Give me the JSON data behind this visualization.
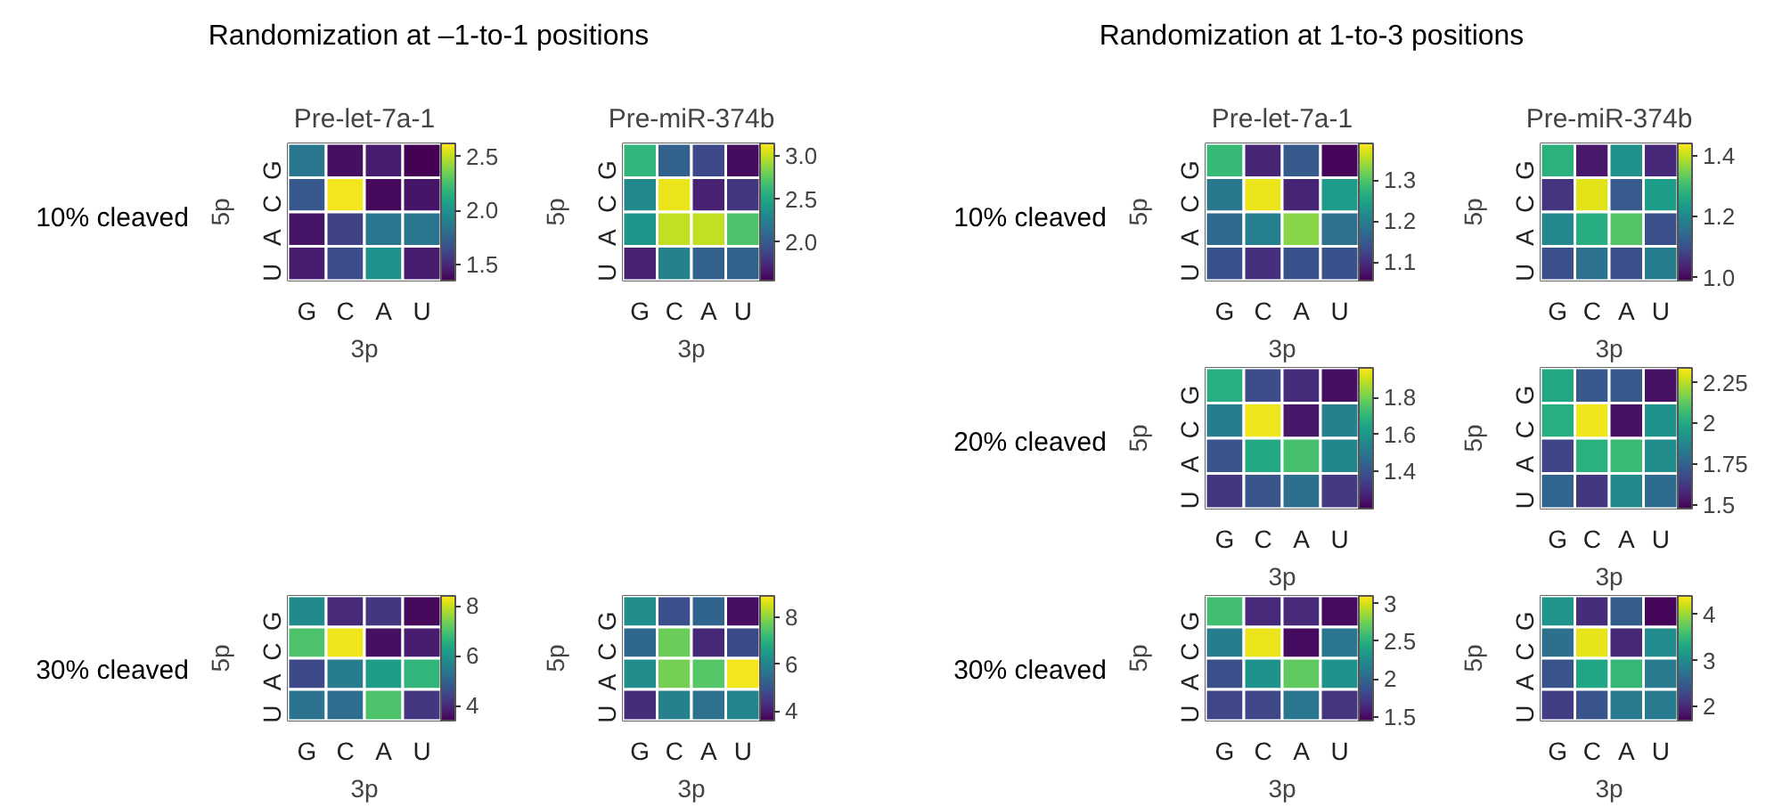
{
  "chart_data": [
    {
      "type": "heatmap",
      "title": "Pre-let-7a-1",
      "xlabel": "3p",
      "ylabel": "5p",
      "categories": [
        "G",
        "C",
        "A",
        "U"
      ],
      "y_categories": [
        "G",
        "C",
        "A",
        "U"
      ],
      "annotations": [
        "Randomization at –1-to-1 positions",
        "10% cleaved"
      ],
      "cells": [
        [
          1.85,
          1.4,
          1.45,
          1.33
        ],
        [
          1.7,
          2.6,
          1.38,
          1.42
        ],
        [
          1.42,
          1.6,
          1.85,
          1.85
        ],
        [
          1.45,
          1.65,
          2.0,
          1.45
        ]
      ],
      "clim": [
        1.35,
        2.62
      ],
      "cticks": [
        1.5,
        {
          "value": 2.0,
          "label": "2.0"
        },
        2.5
      ]
    },
    {
      "type": "heatmap",
      "title": "Pre-miR-374b",
      "xlabel": "3p",
      "ylabel": "5p",
      "categories": [
        "G",
        "C",
        "A",
        "U"
      ],
      "y_categories": [
        "G",
        "C",
        "A",
        "U"
      ],
      "cells": [
        [
          2.6,
          2.05,
          1.9,
          1.6
        ],
        [
          2.3,
          3.1,
          1.7,
          1.8
        ],
        [
          2.4,
          3.0,
          3.0,
          2.7
        ],
        [
          1.7,
          2.25,
          2.05,
          2.05
        ]
      ],
      "clim": [
        1.55,
        3.15
      ],
      "cticks": [
        {
          "value": 2.0,
          "label": "2.0"
        },
        2.5,
        {
          "value": 3.0,
          "label": "3.0"
        }
      ]
    },
    {
      "type": "heatmap",
      "xlabel": "3p",
      "ylabel": "5p",
      "categories": [
        "G",
        "C",
        "A",
        "U"
      ],
      "y_categories": [
        "G",
        "C",
        "A",
        "U"
      ],
      "annotations": [
        "30% cleaved"
      ],
      "cells": [
        [
          5.8,
          4.0,
          4.2,
          3.5
        ],
        [
          7.0,
          8.3,
          3.6,
          3.8
        ],
        [
          4.5,
          5.5,
          6.2,
          6.7
        ],
        [
          5.3,
          5.2,
          7.0,
          4.2
        ]
      ],
      "clim": [
        3.4,
        8.4
      ],
      "cticks": [
        4,
        6,
        8
      ]
    },
    {
      "type": "heatmap",
      "xlabel": "3p",
      "ylabel": "5p",
      "categories": [
        "G",
        "C",
        "A",
        "U"
      ],
      "y_categories": [
        "G",
        "C",
        "A",
        "U"
      ],
      "cells": [
        [
          6.2,
          4.9,
          5.3,
          3.8
        ],
        [
          5.4,
          7.7,
          4.2,
          4.8
        ],
        [
          6.2,
          7.8,
          7.5,
          8.8
        ],
        [
          4.3,
          5.9,
          5.6,
          6.0
        ]
      ],
      "clim": [
        3.6,
        8.9
      ],
      "cticks": [
        4,
        6,
        8
      ]
    },
    {
      "type": "heatmap",
      "title": "Pre-let-7a-1",
      "xlabel": "3p",
      "ylabel": "5p",
      "categories": [
        "G",
        "C",
        "A",
        "U"
      ],
      "y_categories": [
        "G",
        "C",
        "A",
        "U"
      ],
      "annotations": [
        "Randomization at 1-to-3 positions",
        "10% cleaved"
      ],
      "cells": [
        [
          1.28,
          1.09,
          1.15,
          1.06
        ],
        [
          1.19,
          1.38,
          1.09,
          1.24
        ],
        [
          1.17,
          1.2,
          1.33,
          1.18
        ],
        [
          1.14,
          1.1,
          1.14,
          1.14
        ]
      ],
      "clim": [
        1.055,
        1.39
      ],
      "cticks": [
        1.1,
        1.2,
        1.3
      ]
    },
    {
      "type": "heatmap",
      "title": "Pre-miR-374b",
      "xlabel": "3p",
      "ylabel": "5p",
      "categories": [
        "G",
        "C",
        "A",
        "U"
      ],
      "y_categories": [
        "G",
        "C",
        "A",
        "U"
      ],
      "cells": [
        [
          1.28,
          1.02,
          1.22,
          1.04
        ],
        [
          1.06,
          1.42,
          1.12,
          1.24
        ],
        [
          1.2,
          1.27,
          1.32,
          1.1
        ],
        [
          1.1,
          1.16,
          1.1,
          1.18
        ]
      ],
      "clim": [
        0.99,
        1.44
      ],
      "cticks": [
        {
          "value": 1.0,
          "label": "1.0"
        },
        1.2,
        1.4
      ]
    },
    {
      "type": "heatmap",
      "xlabel": "3p",
      "ylabel": "5p",
      "categories": [
        "G",
        "C",
        "A",
        "U"
      ],
      "y_categories": [
        "G",
        "C",
        "A",
        "U"
      ],
      "annotations": [
        "20% cleaved"
      ],
      "cells": [
        [
          1.68,
          1.38,
          1.3,
          1.23
        ],
        [
          1.52,
          1.94,
          1.25,
          1.53
        ],
        [
          1.4,
          1.66,
          1.74,
          1.55
        ],
        [
          1.32,
          1.4,
          1.48,
          1.33
        ]
      ],
      "clim": [
        1.2,
        1.96
      ],
      "cticks": [
        1.4,
        1.6,
        1.8
      ]
    },
    {
      "type": "heatmap",
      "xlabel": "3p",
      "ylabel": "5p",
      "categories": [
        "G",
        "C",
        "A",
        "U"
      ],
      "y_categories": [
        "G",
        "C",
        "A",
        "U"
      ],
      "cells": [
        [
          2.0,
          1.72,
          1.72,
          1.52
        ],
        [
          2.02,
          2.32,
          1.52,
          1.92
        ],
        [
          1.66,
          2.03,
          2.06,
          1.9
        ],
        [
          1.76,
          1.62,
          1.88,
          1.78
        ]
      ],
      "clim": [
        1.48,
        2.34
      ],
      "cticks": [
        1.5,
        1.75,
        2,
        2.25
      ]
    },
    {
      "type": "heatmap",
      "xlabel": "3p",
      "ylabel": "5p",
      "categories": [
        "G",
        "C",
        "A",
        "U"
      ],
      "y_categories": [
        "G",
        "C",
        "A",
        "U"
      ],
      "annotations": [
        "30% cleaved"
      ],
      "cells": [
        [
          2.6,
          1.65,
          1.65,
          1.5
        ],
        [
          2.15,
          3.05,
          1.5,
          2.1
        ],
        [
          1.85,
          2.3,
          2.7,
          2.3
        ],
        [
          1.8,
          1.8,
          2.1,
          1.7
        ]
      ],
      "clim": [
        1.45,
        3.1
      ],
      "cticks": [
        1.5,
        2,
        2.5,
        3
      ]
    },
    {
      "type": "heatmap",
      "xlabel": "3p",
      "ylabel": "5p",
      "categories": [
        "G",
        "C",
        "A",
        "U"
      ],
      "y_categories": [
        "G",
        "C",
        "A",
        "U"
      ],
      "cells": [
        [
          3.1,
          2.05,
          2.5,
          1.75
        ],
        [
          2.7,
          4.3,
          2.0,
          3.0
        ],
        [
          2.4,
          3.3,
          3.5,
          2.8
        ],
        [
          2.2,
          2.4,
          2.8,
          2.8
        ]
      ],
      "clim": [
        1.7,
        4.4
      ],
      "cticks": [
        2,
        3,
        4
      ]
    }
  ]
}
